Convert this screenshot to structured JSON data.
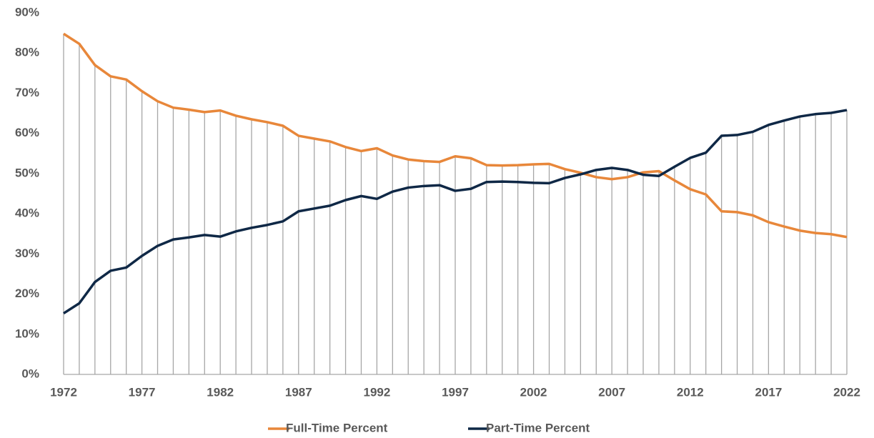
{
  "chart_data": {
    "type": "line",
    "x": [
      1972,
      1973,
      1974,
      1975,
      1976,
      1977,
      1978,
      1979,
      1980,
      1981,
      1982,
      1983,
      1984,
      1985,
      1986,
      1987,
      1988,
      1989,
      1990,
      1991,
      1992,
      1993,
      1994,
      1995,
      1996,
      1997,
      1998,
      1999,
      2000,
      2001,
      2002,
      2003,
      2004,
      2005,
      2006,
      2007,
      2008,
      2009,
      2010,
      2011,
      2012,
      2013,
      2014,
      2015,
      2016,
      2017,
      2018,
      2019,
      2020,
      2021,
      2022
    ],
    "series": [
      {
        "name": "Full-Time Percent",
        "color": "#e8873a",
        "values": [
          84.8,
          82.3,
          77,
          74.2,
          73.4,
          70.5,
          68,
          66.4,
          65.9,
          65.3,
          65.7,
          64.4,
          63.5,
          62.8,
          61.9,
          59.4,
          58.7,
          58,
          56.6,
          55.6,
          56.3,
          54.5,
          53.5,
          53.1,
          52.9,
          54.3,
          53.8,
          52.1,
          52,
          52.1,
          52.3,
          52.4,
          51.1,
          50.2,
          49.1,
          48.6,
          49.1,
          50.3,
          50.6,
          48.3,
          46.1,
          44.8,
          40.6,
          40.4,
          39.6,
          37.9,
          36.8,
          35.8,
          35.2,
          34.9,
          34.2
        ]
      },
      {
        "name": "Part-Time Percent",
        "color": "#0f2846",
        "values": [
          15.2,
          17.7,
          23,
          25.8,
          26.6,
          29.5,
          32,
          33.6,
          34.1,
          34.7,
          34.3,
          35.6,
          36.5,
          37.2,
          38.1,
          40.6,
          41.3,
          42,
          43.4,
          44.4,
          43.7,
          45.5,
          46.5,
          46.9,
          47.1,
          45.7,
          46.2,
          47.9,
          48,
          47.9,
          47.7,
          47.6,
          48.9,
          49.8,
          50.9,
          51.4,
          50.9,
          49.7,
          49.4,
          51.7,
          53.9,
          55.2,
          59.4,
          59.6,
          60.4,
          62.1,
          63.2,
          64.2,
          64.8,
          65.1,
          65.8
        ]
      }
    ],
    "xlim": [
      1972,
      2022
    ],
    "xticks": [
      1972,
      1977,
      1982,
      1987,
      1992,
      1997,
      2002,
      2007,
      2012,
      2017,
      2022
    ],
    "ylim": [
      0,
      90
    ],
    "yticks": [
      {
        "value": 0,
        "label": "0%"
      },
      {
        "value": 10,
        "label": "10%"
      },
      {
        "value": 20,
        "label": "20%"
      },
      {
        "value": 30,
        "label": "30%"
      },
      {
        "value": 40,
        "label": "40%"
      },
      {
        "value": 50,
        "label": "50%"
      },
      {
        "value": 60,
        "label": "60%"
      },
      {
        "value": 70,
        "label": "70%"
      },
      {
        "value": 80,
        "label": "80%"
      },
      {
        "value": 90,
        "label": "90%"
      }
    ],
    "drop_line_color": "#a6a6a6",
    "legend": "bottom"
  }
}
